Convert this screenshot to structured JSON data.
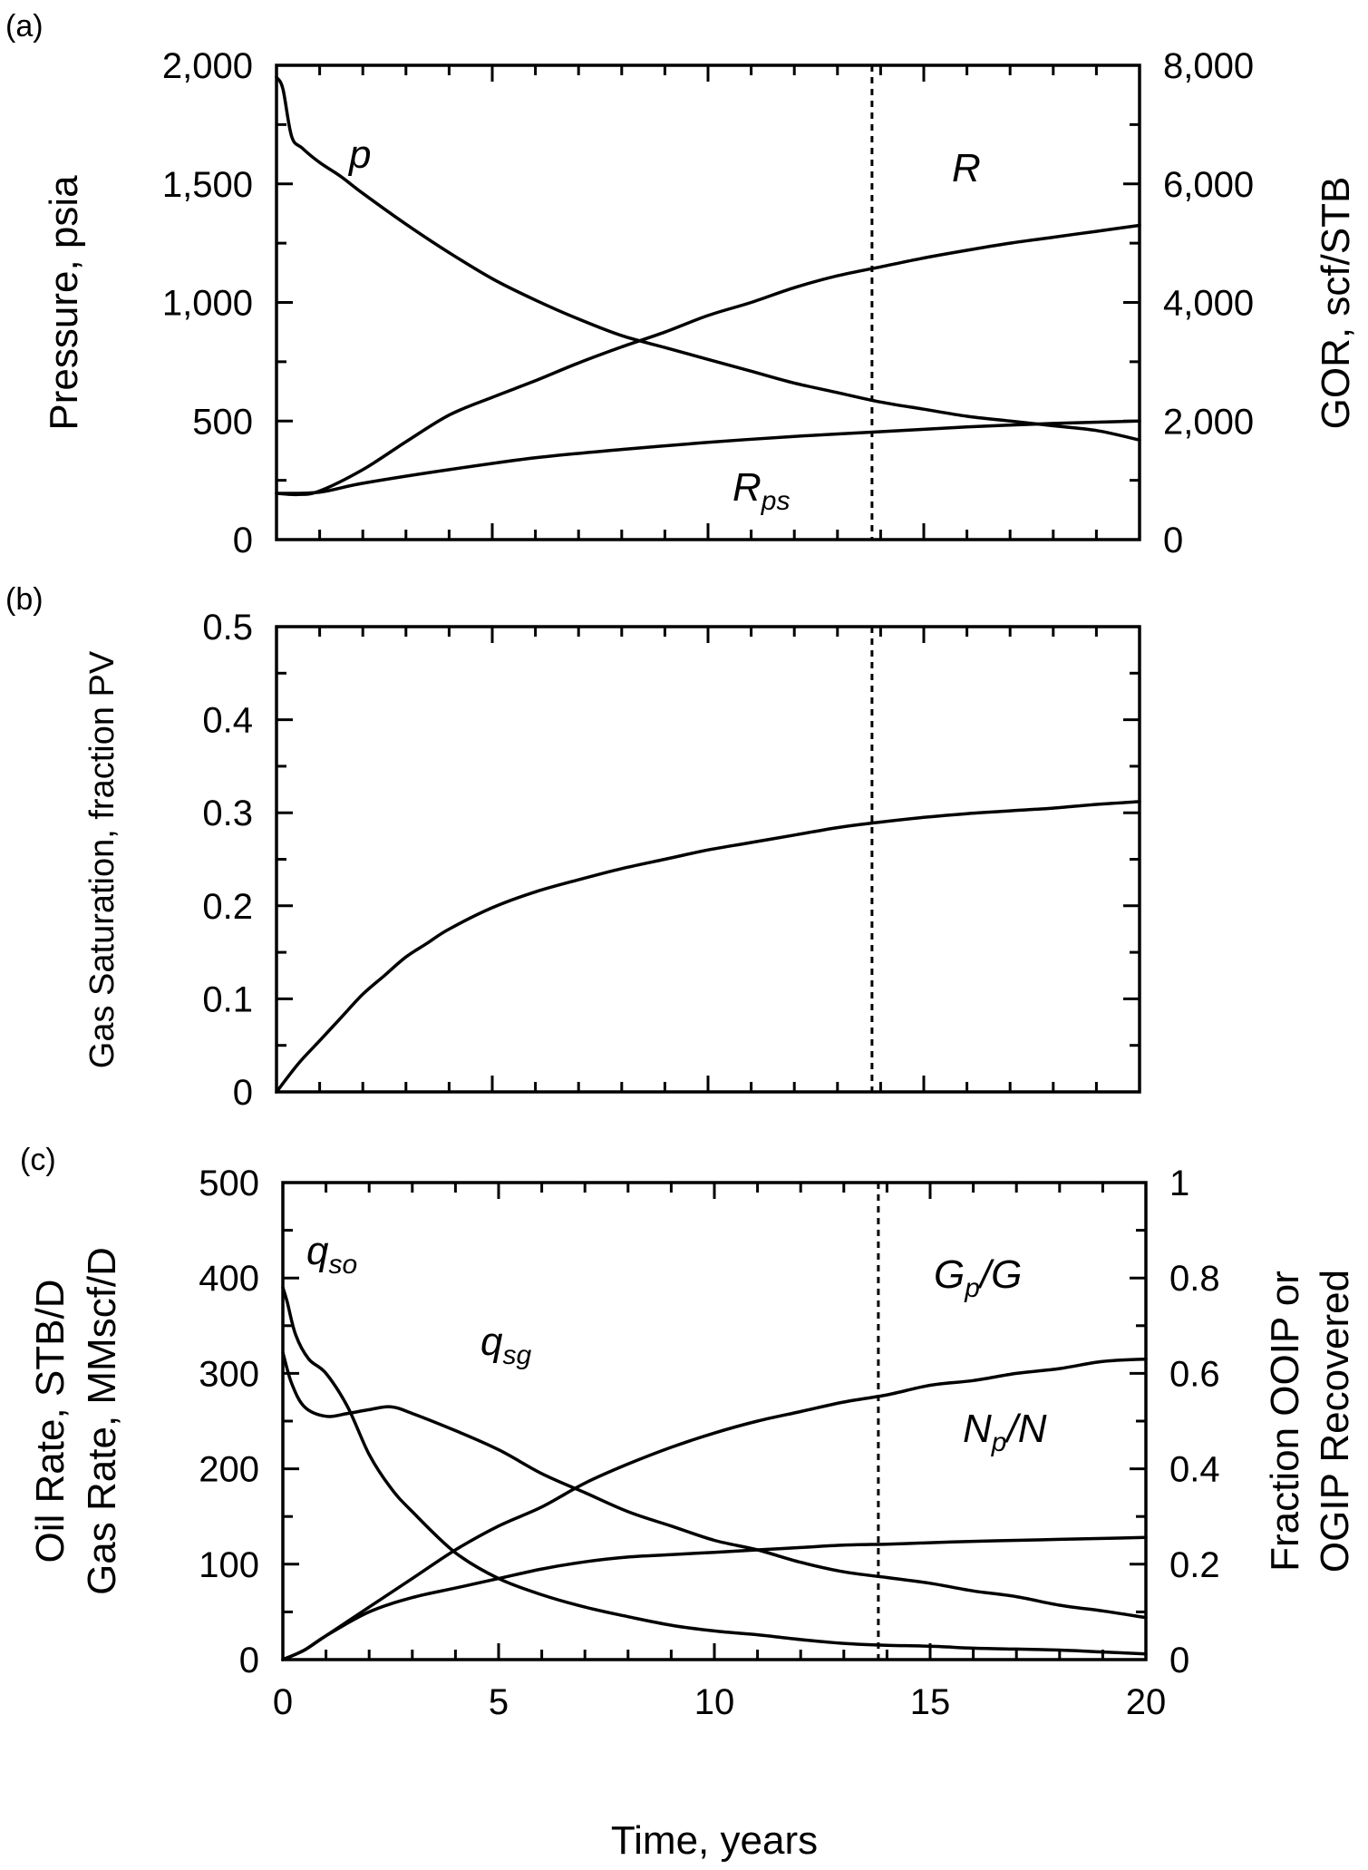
{
  "chart_data": [
    {
      "id": "a",
      "type": "line",
      "panel_label": "(a)",
      "ylabel": "Pressure, psia",
      "y2label": "GOR, scf/STB",
      "xlim": [
        0,
        20
      ],
      "ylim": [
        0,
        2000
      ],
      "y2lim": [
        0,
        8000
      ],
      "y_ticks": [
        0,
        500,
        1000,
        1500,
        2000
      ],
      "y_tick_labels": [
        "0",
        "500",
        "1,000",
        "1,500",
        "2,000"
      ],
      "y2_ticks": [
        0,
        2000,
        4000,
        6000,
        8000
      ],
      "y2_tick_labels": [
        "0",
        "2,000",
        "4,000",
        "6,000",
        "8,000"
      ],
      "vline_x": 13.8,
      "series": [
        {
          "name": "p",
          "label_main": "p",
          "label_sub": "",
          "axis": "left",
          "x": [
            0,
            0.15,
            0.35,
            0.6,
            1,
            1.5,
            2,
            3,
            4,
            5,
            6,
            7,
            8,
            9,
            10,
            11,
            12,
            13,
            14,
            15,
            16,
            17,
            18,
            19,
            20
          ],
          "y": [
            1950,
            1900,
            1700,
            1650,
            1590,
            1530,
            1460,
            1330,
            1210,
            1100,
            1010,
            930,
            860,
            810,
            760,
            710,
            660,
            620,
            580,
            550,
            520,
            500,
            480,
            460,
            420
          ]
        },
        {
          "name": "R",
          "label_main": "R",
          "label_sub": "",
          "axis": "right",
          "x": [
            0,
            0.5,
            1,
            2,
            3,
            4,
            5,
            6,
            7,
            8,
            9,
            10,
            11,
            12,
            13,
            14,
            15,
            16,
            17,
            18,
            19,
            20
          ],
          "y": [
            780,
            760,
            820,
            1180,
            1650,
            2100,
            2400,
            2680,
            2980,
            3250,
            3500,
            3780,
            4000,
            4250,
            4450,
            4600,
            4750,
            4880,
            5000,
            5100,
            5200,
            5300
          ]
        },
        {
          "name": "Rps",
          "label_main": "R",
          "label_sub": "ps",
          "axis": "right",
          "x": [
            0,
            1,
            2,
            4,
            6,
            8,
            10,
            12,
            14,
            16,
            18,
            20
          ],
          "y": [
            780,
            800,
            950,
            1180,
            1380,
            1520,
            1640,
            1740,
            1820,
            1900,
            1960,
            2000
          ]
        }
      ]
    },
    {
      "id": "b",
      "type": "line",
      "panel_label": "(b)",
      "ylabel": "Gas Saturation,  fraction PV",
      "xlim": [
        0,
        20
      ],
      "ylim": [
        0,
        0.5
      ],
      "y_ticks": [
        0,
        0.1,
        0.2,
        0.3,
        0.4,
        0.5
      ],
      "y_tick_labels": [
        "0",
        "0.1",
        "0.2",
        "0.3",
        "0.4",
        "0.5"
      ],
      "vline_x": 13.8,
      "series": [
        {
          "name": "Gas Saturation",
          "axis": "left",
          "x": [
            0,
            0.5,
            1,
            1.5,
            2,
            2.5,
            3,
            3.5,
            4,
            5,
            6,
            7,
            8,
            9,
            10,
            11,
            12,
            13,
            14,
            15,
            16,
            17,
            18,
            19,
            20
          ],
          "y": [
            0,
            0.03,
            0.055,
            0.08,
            0.105,
            0.125,
            0.145,
            0.16,
            0.175,
            0.198,
            0.215,
            0.228,
            0.24,
            0.25,
            0.26,
            0.268,
            0.276,
            0.284,
            0.29,
            0.295,
            0.299,
            0.302,
            0.305,
            0.309,
            0.312
          ]
        }
      ]
    },
    {
      "id": "c",
      "type": "line",
      "panel_label": "(c)",
      "ylabel_lines": [
        "Oil Rate, STB/D",
        "Gas Rate, MMscf/D"
      ],
      "y2label_lines": [
        "Fraction OOIP or",
        "OGIP Recovered"
      ],
      "xlabel": "Time, years",
      "xlim": [
        0,
        20
      ],
      "ylim": [
        0,
        500
      ],
      "y2lim": [
        0,
        1
      ],
      "x_ticks": [
        0,
        5,
        10,
        15,
        20
      ],
      "x_tick_labels": [
        "0",
        "5",
        "10",
        "15",
        "20"
      ],
      "y_ticks": [
        0,
        100,
        200,
        300,
        400,
        500
      ],
      "y_tick_labels": [
        "0",
        "100",
        "200",
        "300",
        "400",
        "500"
      ],
      "y2_ticks": [
        0,
        0.2,
        0.4,
        0.6,
        0.8,
        1
      ],
      "y2_tick_labels": [
        "0",
        "0.2",
        "0.4",
        "0.6",
        "0.8",
        "1"
      ],
      "vline_x": 13.8,
      "series": [
        {
          "name": "qso",
          "label_main": "q",
          "label_sub": "so",
          "axis": "left",
          "x": [
            0,
            0.1,
            0.3,
            0.6,
            1,
            1.5,
            2,
            2.5,
            3,
            4,
            5,
            6,
            7,
            8,
            9,
            10,
            11,
            12,
            13,
            14,
            15,
            16,
            17,
            18,
            19,
            20
          ],
          "y": [
            390,
            375,
            340,
            315,
            300,
            265,
            215,
            180,
            155,
            112,
            85,
            68,
            55,
            45,
            36,
            30,
            26,
            21,
            17,
            15,
            14,
            12,
            11,
            10,
            8,
            6
          ]
        },
        {
          "name": "qsg",
          "label_main": "q",
          "label_sub": "sg",
          "axis": "left",
          "x": [
            0,
            0.2,
            0.5,
            1,
            1.5,
            2,
            2.5,
            3,
            4,
            5,
            6,
            7,
            8,
            9,
            10,
            11,
            12,
            13,
            14,
            15,
            16,
            17,
            18,
            19,
            20
          ],
          "y": [
            322,
            290,
            265,
            255,
            258,
            262,
            265,
            258,
            240,
            220,
            195,
            175,
            155,
            140,
            125,
            115,
            102,
            92,
            86,
            80,
            72,
            66,
            57,
            51,
            44
          ]
        },
        {
          "name": "Gp/G",
          "label_main": "G",
          "label_sub": "p",
          "label_tail": "/G",
          "axis": "right",
          "x": [
            0,
            0.5,
            1,
            2,
            3,
            4,
            5,
            6,
            7,
            8,
            9,
            10,
            11,
            12,
            13,
            14,
            15,
            16,
            17,
            18,
            19,
            20
          ],
          "y": [
            0,
            0.02,
            0.05,
            0.11,
            0.17,
            0.23,
            0.28,
            0.32,
            0.37,
            0.41,
            0.445,
            0.475,
            0.5,
            0.52,
            0.54,
            0.555,
            0.575,
            0.585,
            0.6,
            0.61,
            0.625,
            0.63
          ]
        },
        {
          "name": "Np/N",
          "label_main": "N",
          "label_sub": "p",
          "label_tail": "/N",
          "axis": "right",
          "x": [
            0,
            0.5,
            1,
            2,
            3,
            4,
            5,
            6,
            7,
            8,
            9,
            10,
            11,
            12,
            13,
            14,
            15,
            16,
            17,
            18,
            19,
            20
          ],
          "y": [
            0,
            0.02,
            0.05,
            0.1,
            0.13,
            0.15,
            0.17,
            0.19,
            0.205,
            0.215,
            0.22,
            0.225,
            0.23,
            0.235,
            0.24,
            0.242,
            0.245,
            0.248,
            0.25,
            0.252,
            0.254,
            0.256
          ]
        }
      ]
    }
  ]
}
